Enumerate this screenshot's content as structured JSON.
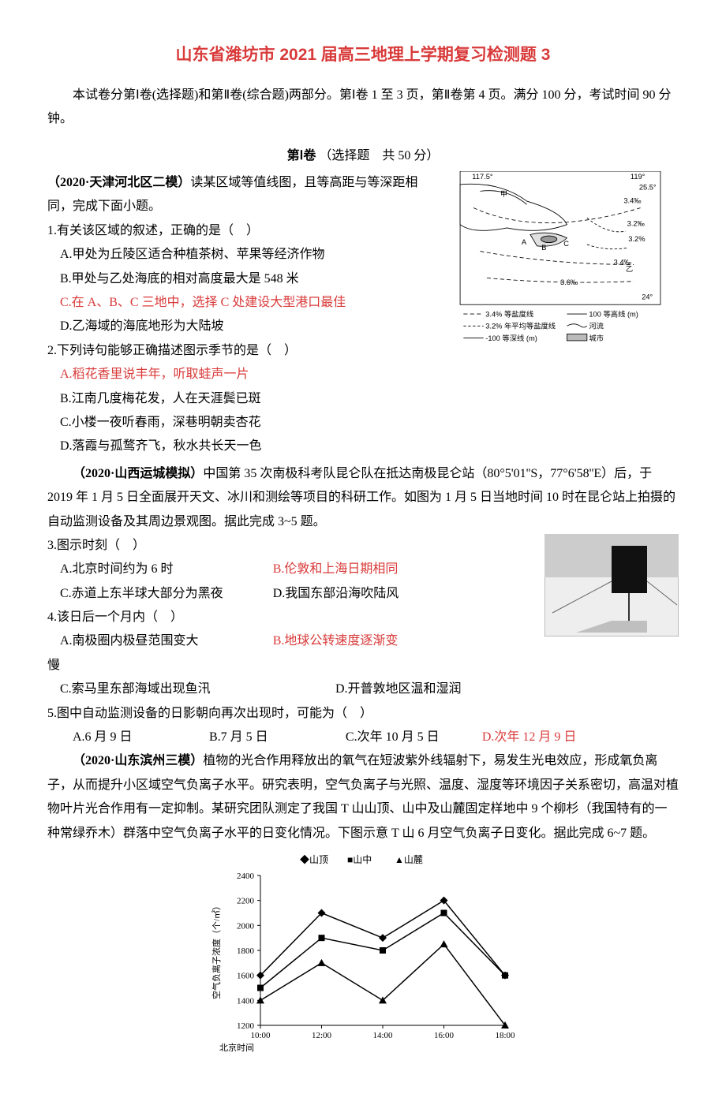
{
  "title": "山东省潍坊市 2021 届高三地理上学期复习检测题 3",
  "intro": "本试卷分第Ⅰ卷(选择题)和第Ⅱ卷(综合题)两部分。第Ⅰ卷 1 至 3 页，第Ⅱ卷第 4 页。满分 100 分，考试时间 90 分钟。",
  "section1_bold": "第Ⅰ卷",
  "section1_rest": "（选择题　共 50 分）",
  "block1": {
    "source": "（2020·天津河北区二模）",
    "stem": "读某区域等值线图，且等高距与等深距相同，完成下面小题。",
    "q1": {
      "stem": "1.有关该区域的叙述，正确的是（　）",
      "A": "A.甲处为丘陵区适合种植茶树、苹果等经济作物",
      "B": "B.甲处与乙处海底的相对高度最大是 548 米",
      "C": "C.在 A、B、C 三地中，选择 C 处建设大型港口最佳",
      "D": "D.乙海域的海底地形为大陆坡"
    },
    "q2": {
      "stem": "2.下列诗句能够正确描述图示季节的是（　）",
      "A": "A.稻花香里说丰年，听取蛙声一片",
      "B": "B.江南几度梅花发，人在天涯鬓已斑",
      "C": "C.小楼一夜听春雨，深巷明朝卖杏花",
      "D": "D.落霞与孤鹜齐飞，秋水共长天一色"
    },
    "map": {
      "lon_left": "117.5°",
      "lon_right": "119°",
      "lat_top": "25.5°",
      "lat_bot": "24°",
      "labels": [
        "甲",
        "乙"
      ],
      "marks": [
        "A",
        "B",
        "C"
      ],
      "salinity": [
        "3.4‰",
        "3.2‰",
        "3.2%",
        "3.4‰",
        "3.6‰"
      ],
      "legend": [
        {
          "dash": "3.4%",
          "text": "等盐度线"
        },
        {
          "dash": "3.2%",
          "text": "年平均等盐度线"
        },
        {
          "dash": "-100",
          "text": "等深线 (m)"
        },
        {
          "solid": "100",
          "text": "等高线 (m)"
        },
        {
          "river": "",
          "text": "河流"
        },
        {
          "city": "",
          "text": "城市"
        }
      ]
    }
  },
  "block2": {
    "source": "（2020·山西运城模拟）",
    "stem": "中国第 35 次南极科考队昆仑队在抵达南极昆仑站（80°5'01''S，77°6'58''E）后，于 2019 年 1 月 5 日全面展开天文、冰川和测绘等项目的科研工作。如图为 1 月 5 日当地时间 10 时在昆仑站上拍摄的自动监测设备及其周边景观图。据此完成 3~5 题。",
    "q3": {
      "stem": "3.图示时刻（　）",
      "A": "A.北京时间约为 6 时",
      "B": "B.伦敦和上海日期相同",
      "C": "C.赤道上东半球大部分为黑夜",
      "D": "D.我国东部沿海吹陆风"
    },
    "q4": {
      "stem": "4.该日后一个月内（　）",
      "A": "A.南极圈内极昼范围变大",
      "B": "B.地球公转速度逐渐变",
      "B_tail": "慢",
      "C": "C.索马里东部海域出现鱼汛",
      "D": "D.开普敦地区温和湿润"
    },
    "q5": {
      "stem": "5.图中自动监测设备的日影朝向再次出现时，可能为（　）",
      "A": "A.6 月 9 日",
      "B": "B.7 月 5 日",
      "C": "C.次年 10 月 5 日",
      "D": "D.次年 12 月 9 日"
    }
  },
  "block3": {
    "source": "（2020·山东滨州三模）",
    "stem": "植物的光合作用释放出的氧气在短波紫外线辐射下，易发生光电效应，形成氧负离子，从而提升小区域空气负离子水平。研究表明，空气负离子与光照、温度、湿度等环境因子关系密切，高温对植物叶片光合作用有一定抑制。某研究团队测定了我国 T 山山顶、山中及山麓固定样地中 9 个柳杉（我国特有的一种常绿乔木）群落中空气负离子水平的日变化情况。下图示意 T 山 6 月空气负离子日变化。据此完成 6~7 题。"
  },
  "chart": {
    "type": "line",
    "x_categories": [
      "10:00",
      "12:00",
      "14:00",
      "16:00",
      "18:00"
    ],
    "x_label": "北京时间",
    "y_label": "空气负离子浓度（个/㎡）",
    "ylim": [
      1200,
      2400
    ],
    "ytick_step": 200,
    "series": [
      {
        "name": "山顶",
        "marker": "diamond",
        "values": [
          1600,
          2100,
          1900,
          2200,
          1600
        ],
        "color": "#000"
      },
      {
        "name": "山中",
        "marker": "square",
        "values": [
          1500,
          1900,
          1800,
          2100,
          1600
        ],
        "color": "#000"
      },
      {
        "name": "山麓",
        "marker": "triangle",
        "values": [
          1400,
          1700,
          1400,
          1850,
          1200
        ],
        "color": "#000"
      }
    ],
    "background_color": "#ffffff",
    "title_fontsize": 12,
    "label_fontsize": 11
  }
}
